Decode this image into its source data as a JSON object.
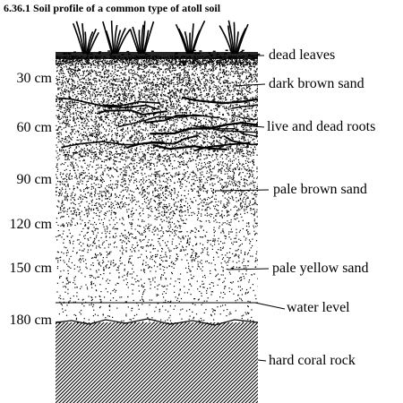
{
  "title": "6.36.1 Soil profile of a common type of atoll soil",
  "depth_scale_unit": "cm",
  "depth_markers": [
    {
      "label": "30 cm",
      "depth_cm": 30
    },
    {
      "label": "60 cm",
      "depth_cm": 60
    },
    {
      "label": "90 cm",
      "depth_cm": 90
    },
    {
      "label": "120 cm",
      "depth_cm": 120
    },
    {
      "label": "150 cm",
      "depth_cm": 150
    },
    {
      "label": "180 cm",
      "depth_cm": 180
    }
  ],
  "layers": [
    {
      "label": "dead leaves",
      "texture": "dense-litter"
    },
    {
      "label": "dark brown sand",
      "texture": "dense-stipple"
    },
    {
      "label": "live and dead roots",
      "texture": "roots"
    },
    {
      "label": "pale brown sand",
      "texture": "medium-stipple"
    },
    {
      "label": "pale yellow sand",
      "texture": "sparse-stipple"
    },
    {
      "label": "water level",
      "texture": "line"
    },
    {
      "label": "hard coral rock",
      "texture": "hatched"
    }
  ],
  "colors": {
    "ink": "#000000",
    "paper": "#ffffff"
  }
}
